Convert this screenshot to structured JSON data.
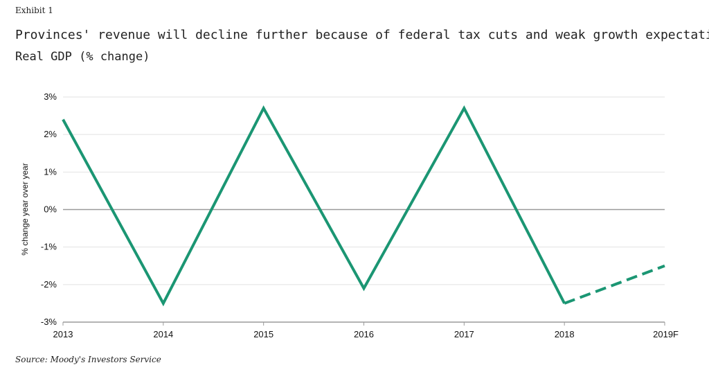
{
  "header": {
    "exhibit": "Exhibit 1",
    "title": "Provinces' revenue will decline further because of federal tax cuts and weak growth expectations",
    "subtitle": "Real GDP (% change)"
  },
  "footer": {
    "source": "Source: Moody's Investors Service"
  },
  "colors": {
    "series": "#1b9673",
    "grid": "#e2e2e2",
    "zero_line": "#9a9a9a"
  },
  "chart_data": {
    "type": "line",
    "title": "Provinces' revenue will decline further because of federal tax cuts and weak growth expectations",
    "subtitle": "Real GDP (% change)",
    "ylabel": "% change year over year",
    "xlabel": "",
    "categories": [
      "2013",
      "2014",
      "2015",
      "2016",
      "2017",
      "2018",
      "2019F"
    ],
    "ylim": [
      -3,
      3
    ],
    "yticks": [
      -3,
      -2,
      -1,
      0,
      1,
      2,
      3
    ],
    "ytick_labels": [
      "-3%",
      "-2%",
      "-1%",
      "0%",
      "1%",
      "2%",
      "3%"
    ],
    "grid": true,
    "series": [
      {
        "values": [
          2.4,
          -2.5,
          2.7,
          -2.1,
          2.7,
          -2.5,
          -1.5
        ],
        "forecast_from_index": 5
      }
    ]
  }
}
